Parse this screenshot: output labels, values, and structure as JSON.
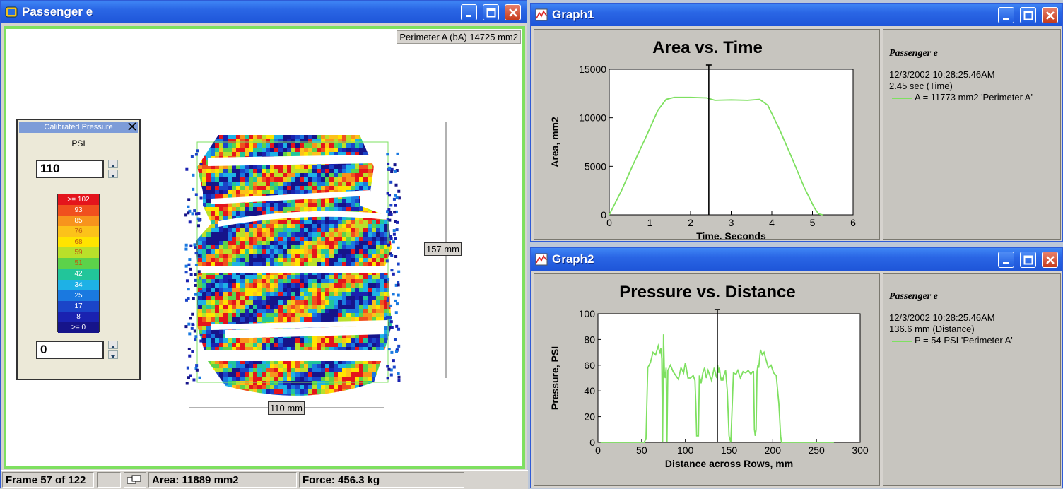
{
  "main_window": {
    "title": "Passenger e",
    "perimeter_label": "Perimeter A (bA) 14725 mm2",
    "dim_vertical": "157 mm",
    "dim_horizontal": "110 mm",
    "status": {
      "frame": "Frame 57 of 122",
      "area": "Area: 11889 mm2",
      "force": "Force: 456.3 kg"
    }
  },
  "palette": {
    "title": "Calibrated Pressure",
    "unit": "PSI",
    "max_value": "110",
    "min_value": "0",
    "legend": [
      {
        "label": ">= 102",
        "color": "#e4141c"
      },
      {
        "label": "93",
        "color": "#f0501e"
      },
      {
        "label": "85",
        "color": "#f7941d"
      },
      {
        "label": "76",
        "color": "#fcc21a"
      },
      {
        "label": "68",
        "color": "#ffe400"
      },
      {
        "label": "59",
        "color": "#b9e02a"
      },
      {
        "label": "51",
        "color": "#5cd24a"
      },
      {
        "label": "42",
        "color": "#22c59a"
      },
      {
        "label": "34",
        "color": "#1eb1e6"
      },
      {
        "label": "25",
        "color": "#1a79e0"
      },
      {
        "label": "17",
        "color": "#1b45c8"
      },
      {
        "label": "8",
        "color": "#1a22b0"
      },
      {
        "label": ">= 0",
        "color": "#16148a"
      }
    ]
  },
  "graph1": {
    "window_title": "Graph1",
    "info": {
      "name": "Passenger e",
      "datetime": "12/3/2002 10:28:25.46AM",
      "cursor": "2.45 sec (Time)",
      "series_label": "A = 11773 mm2 'Perimeter A'"
    }
  },
  "graph2": {
    "window_title": "Graph2",
    "info": {
      "name": "Passenger e",
      "datetime": "12/3/2002 10:28:25.46AM",
      "cursor": "136.6 mm (Distance)",
      "series_label": "P = 54 PSI 'Perimeter A'"
    }
  },
  "chart_data": [
    {
      "type": "line",
      "title": "Area vs. Time",
      "xlabel": "Time, Seconds",
      "ylabel": "Area, mm2",
      "xlim": [
        0,
        6
      ],
      "ylim": [
        0,
        15000
      ],
      "xticks": [
        0,
        1,
        2,
        3,
        4,
        5,
        6
      ],
      "yticks": [
        0,
        5000,
        10000,
        15000
      ],
      "cursor_x": 2.45,
      "line_color": "#7ee060",
      "series": [
        {
          "x": [
            0,
            0.3,
            0.6,
            0.9,
            1.2,
            1.4,
            1.6,
            2.0,
            2.4,
            2.6,
            3.0,
            3.4,
            3.7,
            3.9,
            4.2,
            4.5,
            4.8,
            5.05,
            5.15,
            5.25
          ],
          "y": [
            0,
            2500,
            5300,
            8000,
            10800,
            11900,
            12100,
            12100,
            12050,
            11800,
            11850,
            11800,
            11900,
            11300,
            8700,
            5800,
            2800,
            700,
            100,
            0
          ]
        }
      ]
    },
    {
      "type": "line",
      "title": "Pressure vs. Distance",
      "xlabel": "Distance across Rows, mm",
      "ylabel": "Pressure, PSI",
      "xlim": [
        0,
        300
      ],
      "ylim": [
        0,
        100
      ],
      "xticks": [
        0,
        50,
        100,
        150,
        200,
        250,
        300
      ],
      "yticks": [
        0,
        20,
        40,
        60,
        80,
        100
      ],
      "cursor_x": 136.6,
      "line_color": "#7ee060",
      "series": [
        {
          "x": [
            3,
            53,
            55,
            57,
            60,
            63,
            66,
            69,
            71,
            72,
            73,
            74,
            75,
            76,
            77,
            78,
            79,
            80,
            83,
            86,
            89,
            92,
            95,
            98,
            100,
            103,
            106,
            109,
            111,
            112,
            113,
            114,
            115,
            116,
            118,
            120,
            122,
            124,
            126,
            128,
            130,
            133,
            135,
            136,
            137,
            138,
            139,
            140,
            141,
            142,
            143,
            144,
            146,
            148,
            150,
            152,
            155,
            158,
            160,
            163,
            166,
            169,
            172,
            175,
            177,
            178,
            179,
            180,
            181,
            182,
            183,
            184,
            186,
            188,
            190,
            192,
            195,
            198,
            201,
            204,
            207,
            209,
            210,
            211,
            214,
            270
          ],
          "y": [
            0,
            0,
            3,
            58,
            62,
            70,
            68,
            75,
            69,
            73,
            65,
            0,
            84,
            55,
            50,
            58,
            0,
            56,
            60,
            55,
            52,
            49,
            58,
            54,
            62,
            50,
            50,
            52,
            48,
            30,
            5,
            5,
            5,
            52,
            46,
            54,
            58,
            50,
            56,
            52,
            48,
            58,
            52,
            50,
            60,
            54,
            58,
            52,
            48,
            50,
            48,
            52,
            56,
            40,
            5,
            0,
            54,
            53,
            56,
            50,
            55,
            54,
            56,
            53,
            55,
            55,
            10,
            5,
            10,
            55,
            60,
            58,
            72,
            68,
            70,
            65,
            58,
            60,
            54,
            52,
            30,
            5,
            0,
            0,
            0,
            0
          ]
        }
      ]
    }
  ]
}
